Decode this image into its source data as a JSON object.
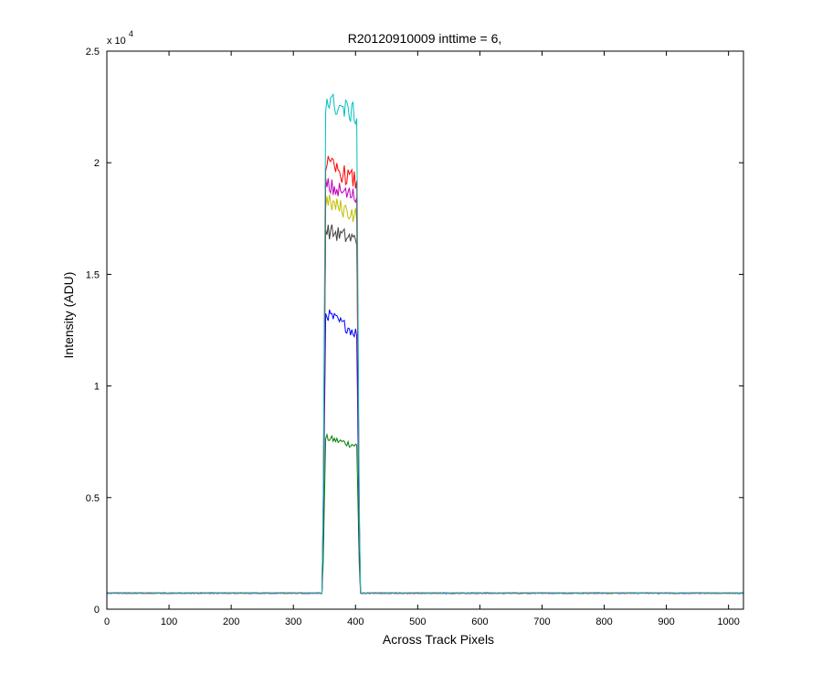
{
  "chart_data": {
    "type": "line",
    "title": "R20120910009 inttime = 6,",
    "xlabel": "Across Track Pixels",
    "ylabel": "Intensity (ADU)",
    "xlim": [
      0,
      1024
    ],
    "ylim": [
      0,
      25000
    ],
    "x_ticks": [
      0,
      100,
      200,
      300,
      400,
      500,
      600,
      700,
      800,
      900,
      1000
    ],
    "y_ticks": [
      0,
      5000,
      10000,
      15000,
      20000,
      25000
    ],
    "y_tick_labels": [
      "0",
      "0.5",
      "1",
      "1.5",
      "2",
      "2.5"
    ],
    "y_multiplier": {
      "base": "x 10",
      "exponent": "4"
    },
    "grid": false,
    "legend": "none",
    "baseline": 720,
    "signal_region": [
      350,
      405
    ],
    "series": [
      {
        "color": "#008000",
        "plateau_start": 7700,
        "plateau_end": 7300
      },
      {
        "color": "#0000ff",
        "plateau_start": 13300,
        "plateau_end": 12300
      },
      {
        "color": "#404040",
        "plateau_start": 17000,
        "plateau_end": 16500
      },
      {
        "color": "#bfbf00",
        "plateau_start": 18300,
        "plateau_end": 17600
      },
      {
        "color": "#bf00bf",
        "plateau_start": 19000,
        "plateau_end": 18400
      },
      {
        "color": "#ff0000",
        "plateau_start": 20000,
        "plateau_end": 19100
      },
      {
        "color": "#00bfbf",
        "plateau_start": 22800,
        "plateau_end": 22100
      }
    ]
  }
}
